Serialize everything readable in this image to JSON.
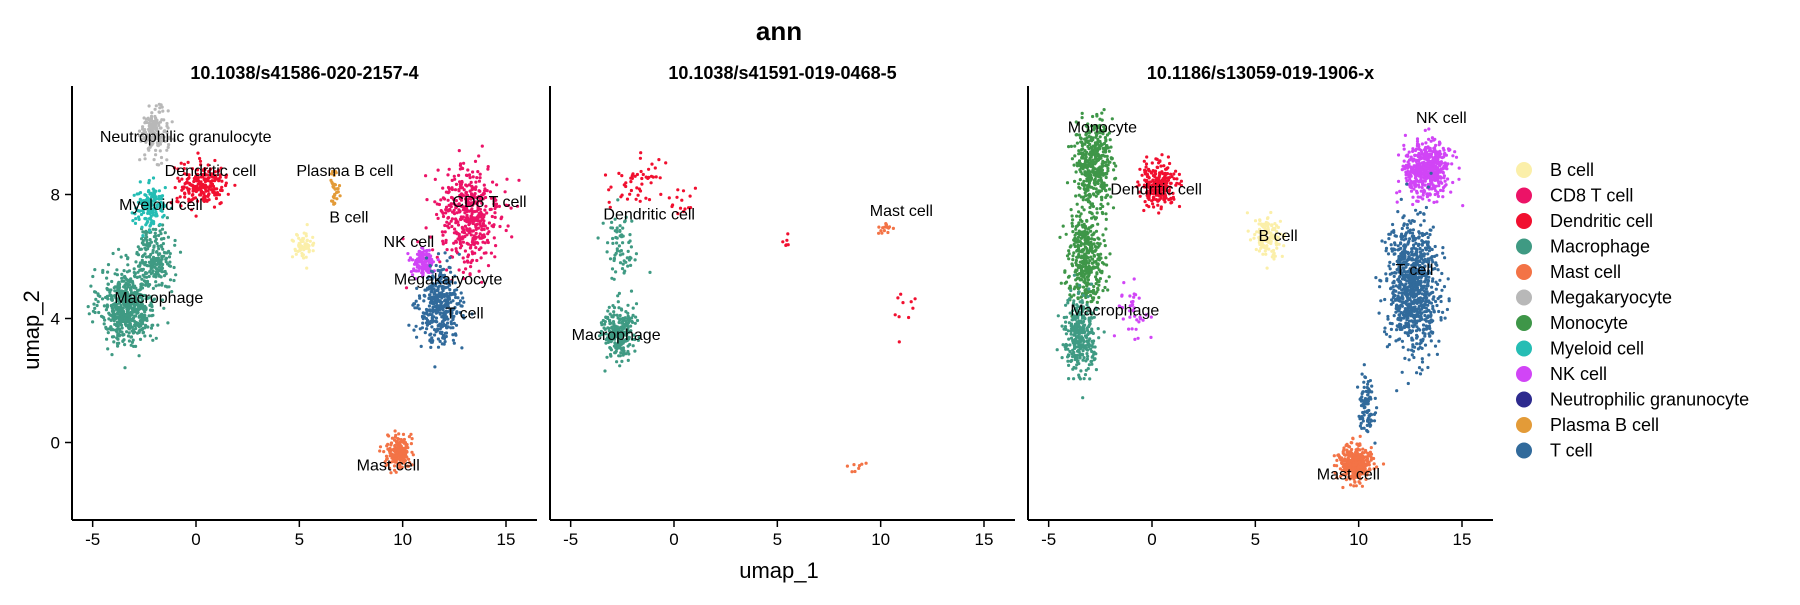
{
  "chart_data": {
    "type": "scatter",
    "title": "ann",
    "xlabel": "umap_1",
    "ylabel": "umap_2",
    "xlim": [
      -6,
      16.5
    ],
    "ylim": [
      -2.5,
      11.5
    ],
    "x_ticks": [
      -5,
      0,
      5,
      10,
      15
    ],
    "y_ticks": [
      0,
      4,
      8
    ],
    "legend_position": "right",
    "legend": [
      {
        "name": "B cell",
        "color": "#FBEFA9"
      },
      {
        "name": "CD8 T cell",
        "color": "#EC1367"
      },
      {
        "name": "Dendritic cell",
        "color": "#F10F2F"
      },
      {
        "name": "Macrophage",
        "color": "#3F9A83"
      },
      {
        "name": "Mast cell",
        "color": "#F37346"
      },
      {
        "name": "Megakaryocyte",
        "color": "#B8B8B8"
      },
      {
        "name": "Monocyte",
        "color": "#3E9648"
      },
      {
        "name": "Myeloid cell",
        "color": "#25BDB4"
      },
      {
        "name": "NK cell",
        "color": "#D145F6"
      },
      {
        "name": "Neutrophilic granunocyte",
        "color": "#2D2A8E"
      },
      {
        "name": "Plasma B cell",
        "color": "#E39B38"
      },
      {
        "name": "T cell",
        "color": "#316A9B"
      }
    ],
    "panels": [
      {
        "title": "10.1038/s41586-020-2157-4",
        "clusters": [
          {
            "cell_type": "Macrophage",
            "center": [
              -3.3,
              4.4
            ],
            "spread": [
              1.2,
              1.1
            ],
            "n": 600
          },
          {
            "cell_type": "Macrophage",
            "center": [
              -2.0,
              6.0
            ],
            "spread": [
              0.8,
              0.9
            ],
            "n": 200
          },
          {
            "cell_type": "Myeloid cell",
            "center": [
              -2.2,
              7.6
            ],
            "spread": [
              0.7,
              0.6
            ],
            "n": 160
          },
          {
            "cell_type": "Megakaryocyte",
            "center": [
              -2.0,
              10.0
            ],
            "spread": [
              0.6,
              0.7
            ],
            "n": 160
          },
          {
            "cell_type": "Dendritic cell",
            "center": [
              0.3,
              8.3
            ],
            "spread": [
              1.1,
              0.6
            ],
            "n": 220
          },
          {
            "cell_type": "B cell",
            "center": [
              5.2,
              6.3
            ],
            "spread": [
              0.5,
              0.4
            ],
            "n": 60
          },
          {
            "cell_type": "Plasma B cell",
            "center": [
              6.7,
              8.2
            ],
            "spread": [
              0.25,
              0.6
            ],
            "n": 30
          },
          {
            "cell_type": "CD8 T cell",
            "center": [
              13.2,
              7.3
            ],
            "spread": [
              1.4,
              1.5
            ],
            "n": 450
          },
          {
            "cell_type": "NK cell",
            "center": [
              11.0,
              5.8
            ],
            "spread": [
              0.5,
              0.4
            ],
            "n": 150
          },
          {
            "cell_type": "T cell",
            "center": [
              11.8,
              4.4
            ],
            "spread": [
              0.9,
              1.1
            ],
            "n": 380
          },
          {
            "cell_type": "Mast cell",
            "center": [
              9.8,
              -0.3
            ],
            "spread": [
              0.5,
              0.5
            ],
            "n": 200
          }
        ],
        "labels": [
          {
            "text": "Neutrophilic granulocyte",
            "x": -0.5,
            "y": 9.7
          },
          {
            "text": "Dendritic cell",
            "x": 0.7,
            "y": 8.6
          },
          {
            "text": "Plasma B cell",
            "x": 7.2,
            "y": 8.6
          },
          {
            "text": "Myeloid cell",
            "x": -1.7,
            "y": 7.5
          },
          {
            "text": "B cell",
            "x": 7.4,
            "y": 7.1
          },
          {
            "text": "CD8 T cell",
            "x": 14.2,
            "y": 7.6
          },
          {
            "text": "NK cell",
            "x": 10.3,
            "y": 6.3
          },
          {
            "text": "Megakaryocyte",
            "x": 12.2,
            "y": 5.1
          },
          {
            "text": "T cell",
            "x": 13.0,
            "y": 4.0
          },
          {
            "text": "Macrophage",
            "x": -1.8,
            "y": 4.5
          },
          {
            "text": "Mast cell",
            "x": 9.3,
            "y": -0.9
          }
        ]
      },
      {
        "title": "10.1038/s41591-019-0468-5",
        "clusters": [
          {
            "cell_type": "Macrophage",
            "center": [
              -2.7,
              3.6
            ],
            "spread": [
              0.7,
              0.8
            ],
            "n": 240
          },
          {
            "cell_type": "Macrophage",
            "center": [
              -2.6,
              6.3
            ],
            "spread": [
              0.7,
              1.1
            ],
            "n": 70
          },
          {
            "cell_type": "Dendritic cell",
            "center": [
              -1.8,
              8.4
            ],
            "spread": [
              1.2,
              0.8
            ],
            "n": 50
          },
          {
            "cell_type": "Dendritic cell",
            "center": [
              0.4,
              7.7
            ],
            "spread": [
              0.6,
              0.4
            ],
            "n": 15
          },
          {
            "cell_type": "Dendritic cell",
            "center": [
              5.3,
              6.4
            ],
            "spread": [
              0.3,
              0.2
            ],
            "n": 6
          },
          {
            "cell_type": "Dendritic cell",
            "center": [
              11.0,
              4.2
            ],
            "spread": [
              0.6,
              0.8
            ],
            "n": 10
          },
          {
            "cell_type": "Mast cell",
            "center": [
              10.2,
              6.9
            ],
            "spread": [
              0.3,
              0.2
            ],
            "n": 15
          },
          {
            "cell_type": "Mast cell",
            "center": [
              9.0,
              -0.8
            ],
            "spread": [
              0.4,
              0.2
            ],
            "n": 8
          }
        ],
        "labels": [
          {
            "text": "Dendritic cell",
            "x": -1.2,
            "y": 7.2
          },
          {
            "text": "Mast cell",
            "x": 11.0,
            "y": 7.3
          },
          {
            "text": "Macrophage",
            "x": -2.8,
            "y": 3.3
          }
        ]
      },
      {
        "title": "10.1186/s13059-019-1906-x",
        "clusters": [
          {
            "cell_type": "Monocyte",
            "center": [
              -2.8,
              9.0
            ],
            "spread": [
              0.8,
              1.2
            ],
            "n": 450
          },
          {
            "cell_type": "Monocyte",
            "center": [
              -3.2,
              6.0
            ],
            "spread": [
              0.8,
              1.3
            ],
            "n": 400
          },
          {
            "cell_type": "Dendritic cell",
            "center": [
              0.3,
              8.3
            ],
            "spread": [
              0.8,
              0.6
            ],
            "n": 260
          },
          {
            "cell_type": "Macrophage",
            "center": [
              -3.5,
              3.5
            ],
            "spread": [
              0.7,
              1.1
            ],
            "n": 320
          },
          {
            "cell_type": "NK cell",
            "center": [
              -0.8,
              4.2
            ],
            "spread": [
              0.8,
              0.8
            ],
            "n": 40
          },
          {
            "cell_type": "B cell",
            "center": [
              5.6,
              6.6
            ],
            "spread": [
              0.6,
              0.6
            ],
            "n": 140
          },
          {
            "cell_type": "NK cell",
            "center": [
              13.3,
              8.8
            ],
            "spread": [
              1.0,
              0.8
            ],
            "n": 500
          },
          {
            "cell_type": "T cell",
            "center": [
              12.6,
              5.0
            ],
            "spread": [
              1.1,
              1.9
            ],
            "n": 900
          },
          {
            "cell_type": "T cell",
            "center": [
              10.4,
              1.2
            ],
            "spread": [
              0.4,
              0.8
            ],
            "n": 90
          },
          {
            "cell_type": "Mast cell",
            "center": [
              9.8,
              -0.7
            ],
            "spread": [
              0.7,
              0.5
            ],
            "n": 350
          }
        ],
        "labels": [
          {
            "text": "Monocyte",
            "x": -2.4,
            "y": 10.0
          },
          {
            "text": "NK cell",
            "x": 14.0,
            "y": 10.3
          },
          {
            "text": "Dendritic cell",
            "x": 0.2,
            "y": 8.0
          },
          {
            "text": "B cell",
            "x": 6.1,
            "y": 6.5
          },
          {
            "text": "T cell",
            "x": 12.7,
            "y": 5.4
          },
          {
            "text": "Macrophage",
            "x": -1.8,
            "y": 4.1
          },
          {
            "text": "Mast cell",
            "x": 9.5,
            "y": -1.2
          }
        ]
      }
    ]
  }
}
